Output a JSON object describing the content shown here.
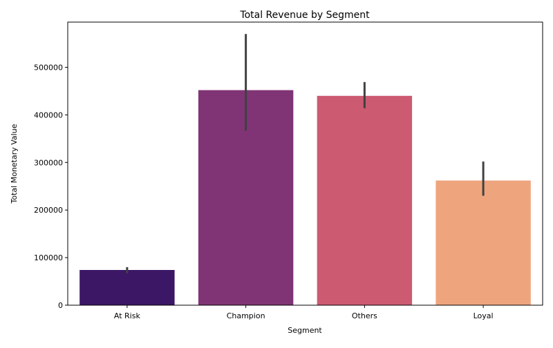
{
  "chart_data": {
    "type": "bar",
    "title": "Total Revenue by Segment",
    "xlabel": "Segment",
    "ylabel": "Total Monetary Value",
    "categories": [
      "At Risk",
      "Champion",
      "Others",
      "Loyal"
    ],
    "values": [
      74000,
      452000,
      440000,
      262000
    ],
    "error_low": [
      67000,
      367000,
      414000,
      230000
    ],
    "error_high": [
      80000,
      570000,
      469000,
      302000
    ],
    "colors": [
      "#3b1766",
      "#803475",
      "#cc5a71",
      "#eea57e"
    ],
    "error_color": "#404040",
    "ylim": [
      0,
      595000
    ],
    "yticks": [
      0,
      100000,
      200000,
      300000,
      400000,
      500000
    ],
    "ytick_labels": [
      "0",
      "100000",
      "200000",
      "300000",
      "400000",
      "500000"
    ],
    "grid": false,
    "legend": "none"
  }
}
